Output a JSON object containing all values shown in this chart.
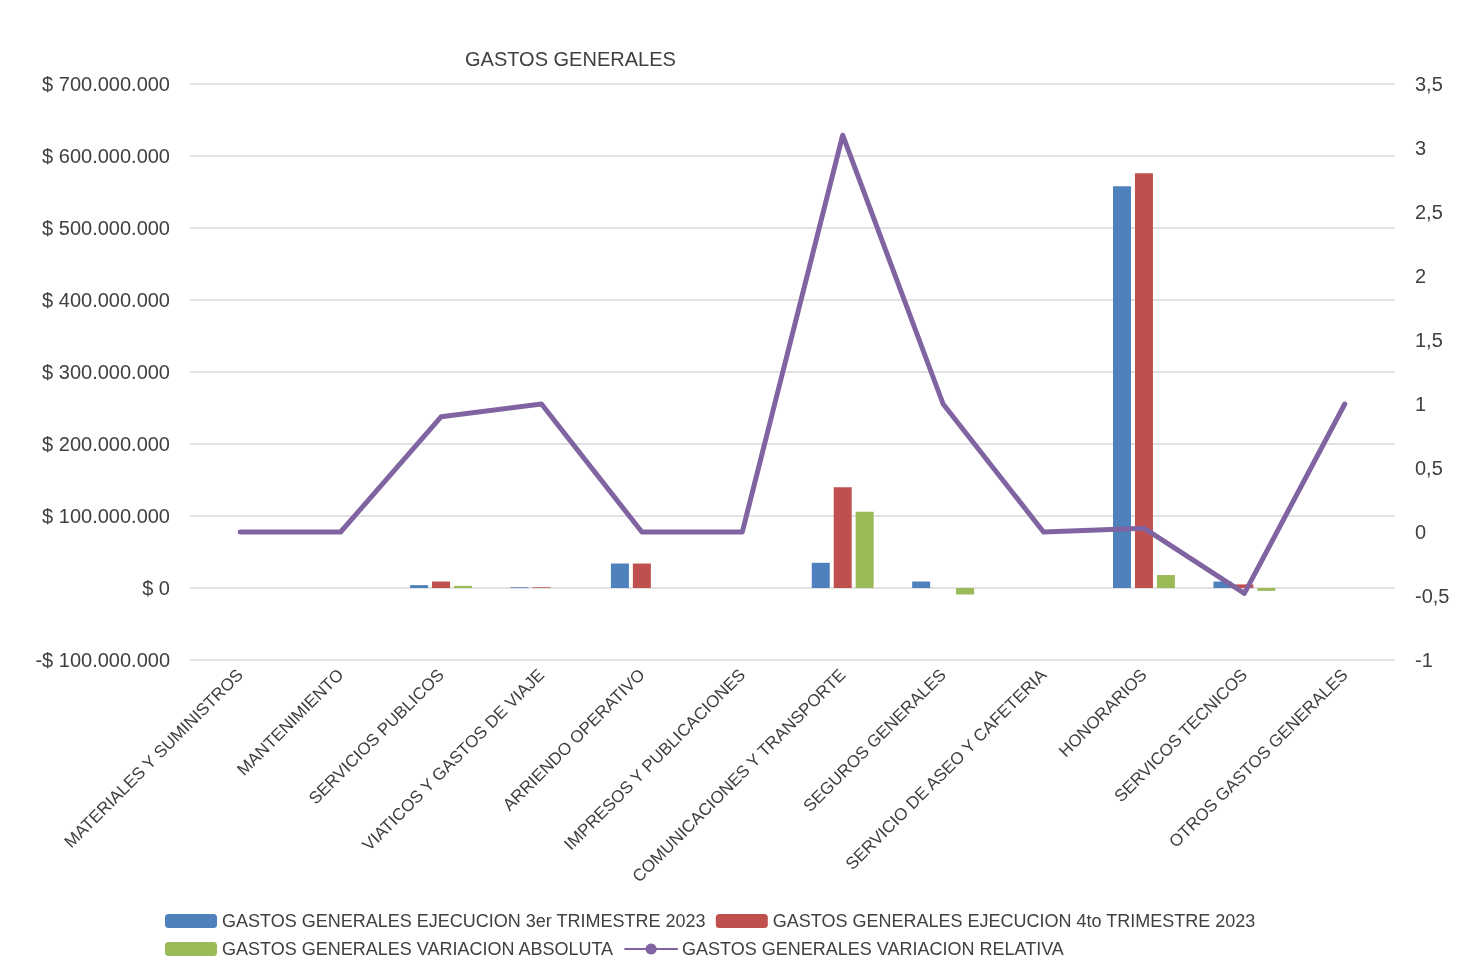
{
  "chart_data": {
    "type": "bar",
    "title": "GASTOS GENERALES",
    "categories": [
      "MATERIALES Y SUMINISTROS",
      "MANTENIMIENTO",
      "SERVICIOS PUBLICOS",
      "VIATICOS Y GASTOS DE VIAJE",
      "ARRIENDO OPERATIVO",
      "IMPRESOS Y PUBLICACIONES",
      "COMUNICACIONES Y TRANSPORTE",
      "SEGUROS GENERALES",
      "SERVICIO DE ASEO Y CAFETERIA",
      "HONORARIOS",
      "SERVICOS TECNICOS",
      "OTROS GASTOS GENERALES"
    ],
    "series": [
      {
        "name": "GASTOS GENERALES EJECUCION 3er TRIMESTRE 2023",
        "color": "#4f81bd",
        "values": [
          0,
          0,
          4000000,
          1000000,
          34000000,
          0,
          35000000,
          9000000,
          0,
          558000000,
          9000000,
          0
        ]
      },
      {
        "name": "GASTOS GENERALES EJECUCION 4to TRIMESTRE 2023",
        "color": "#c0504d",
        "values": [
          0,
          0,
          9000000,
          1000000,
          34000000,
          0,
          140000000,
          0,
          0,
          576000000,
          5000000,
          0
        ]
      },
      {
        "name": "GASTOS GENERALES VARIACION ABSOLUTA",
        "color": "#9bbb59",
        "values": [
          0,
          0,
          3000000,
          0,
          0,
          0,
          106000000,
          -9000000,
          0,
          18000000,
          -4000000,
          0
        ]
      },
      {
        "name": "GASTOS GENERALES VARIACION RELATIVA",
        "color": "#8064a2",
        "type": "line",
        "axis": "y2",
        "values": [
          0,
          0,
          0.9,
          1,
          0,
          0,
          3.1,
          1,
          0,
          0.03,
          -0.48,
          1
        ]
      }
    ],
    "ylim": [
      -100000000,
      700000000
    ],
    "yticks": [
      {
        "value": -100000000,
        "label": "-$ 100.000.000"
      },
      {
        "value": 0,
        "label": "$ 0"
      },
      {
        "value": 100000000,
        "label": "$ 100.000.000"
      },
      {
        "value": 200000000,
        "label": "$ 200.000.000"
      },
      {
        "value": 300000000,
        "label": "$ 300.000.000"
      },
      {
        "value": 400000000,
        "label": "$ 400.000.000"
      },
      {
        "value": 500000000,
        "label": "$ 500.000.000"
      },
      {
        "value": 600000000,
        "label": "$ 600.000.000"
      },
      {
        "value": 700000000,
        "label": "$ 700.000.000"
      }
    ],
    "y2lim": [
      -1,
      3.5
    ],
    "y2ticks": [
      {
        "value": -1,
        "label": "-1"
      },
      {
        "value": -0.5,
        "label": "-0,5"
      },
      {
        "value": 0,
        "label": "0"
      },
      {
        "value": 0.5,
        "label": "0,5"
      },
      {
        "value": 1,
        "label": "1"
      },
      {
        "value": 1.5,
        "label": "1,5"
      },
      {
        "value": 2,
        "label": "2"
      },
      {
        "value": 2.5,
        "label": "2,5"
      },
      {
        "value": 3,
        "label": "3"
      },
      {
        "value": 3.5,
        "label": "3,5"
      }
    ],
    "grid": "y",
    "legend": "bottom",
    "marker": "none"
  }
}
